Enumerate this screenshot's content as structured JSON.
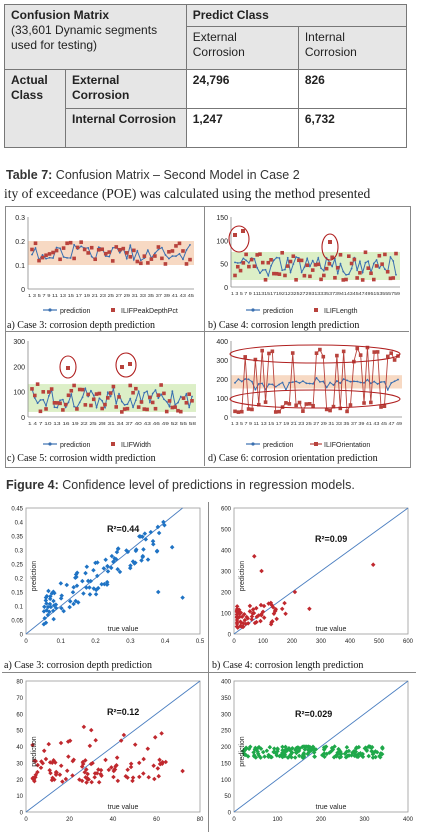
{
  "table": {
    "corner_title": "Confusion Matrix",
    "corner_note": "(33,601 Dynamic segments used for testing)",
    "predict_class": "Predict Class",
    "col_external": "External Corrosion",
    "col_internal": "Internal Corrosion",
    "actual_class": "Actual Class",
    "row_external": "External Corrosion",
    "row_internal": "Internal Corrosion",
    "v_ee": "24,796",
    "v_ei": "826",
    "v_ie": "1,247",
    "v_ii": "6,732"
  },
  "captions": {
    "table7_label": "Table 7:",
    "table7_text": " Confusion Matrix – Second Model in Case 2",
    "body_line": "ity of exceedance (POE) was calculated using the method presented",
    "fig4_label": "Figure 4:",
    "fig4_text": " Confidence level of predictions in regression models."
  },
  "top_panels": {
    "a": "a) Case 3: corrosion depth prediction",
    "b": "b) Case 4: corrosion length prediction",
    "c": "c) Case 5: corrosion width prediction",
    "d": "d) Case 6: corrosion orientation prediction"
  },
  "bottom_panels": {
    "a": "a) Case 3: corrosion depth prediction",
    "b": "b) Case 4: corrosion length prediction"
  },
  "colors": {
    "prediction_line": "#3a6fb0",
    "actual_marker": "#b8423c",
    "band_orange": "#f6d2b8",
    "band_green": "#d6ecbd",
    "scatter_blue": "#1f73c4",
    "scatter_red": "#c0282e",
    "scatter_green": "#1fa84a",
    "diagonal": "#4a7ec0",
    "circle": "#b02020"
  },
  "chart_data": [
    {
      "type": "line",
      "panel": "top-a",
      "series": [
        {
          "name": "prediction"
        },
        {
          "name": "ILIFPeakDepthPct"
        }
      ],
      "ylim": [
        0,
        0.3
      ],
      "yticks": [
        "0",
        "0.1",
        "0.2",
        "0.3"
      ],
      "xticks": "1 3 5 7 9 11 13 15 17 19 21 23 25 27 29 31 33 35 37 39 41 43 45",
      "n_points": 46
    },
    {
      "type": "line",
      "panel": "top-b",
      "series": [
        {
          "name": "prediction"
        },
        {
          "name": "ILIFLength"
        }
      ],
      "ylim": [
        0,
        150
      ],
      "yticks": [
        "0",
        "50",
        "100",
        "150"
      ],
      "xticks": "1 3 5 7 9 11131517192123252729313335373941434547495153555759",
      "n_points": 59
    },
    {
      "type": "line",
      "panel": "top-c",
      "series": [
        {
          "name": "prediction"
        },
        {
          "name": "ILIFWidth"
        }
      ],
      "ylim": [
        0,
        300
      ],
      "yticks": [
        "0",
        "100",
        "200",
        "300"
      ],
      "xticks": "1 4 7 10 13 16 19 22 25 28 31 34 37 40 43 46 49 52 55 58",
      "n_points": 58
    },
    {
      "type": "line",
      "panel": "top-d",
      "series": [
        {
          "name": "prediction"
        },
        {
          "name": "ILIFOrientation"
        }
      ],
      "ylim": [
        0,
        400
      ],
      "yticks": [
        "0",
        "100",
        "200",
        "300",
        "400"
      ],
      "xticks": "1 3 5 7 9 11 13 15 17 19 21 23 25 27 29 31 33 35 37 39 41 43 45 47 49",
      "n_points": 49
    },
    {
      "type": "scatter",
      "panel": "bottom-a",
      "annotation": "R²=0.44",
      "xlabel": "true value",
      "ylabel": "prediction",
      "xlim": [
        0,
        0.5
      ],
      "ylim": [
        0,
        0.45
      ],
      "xticks": [
        "0",
        "0.1",
        "0.2",
        "0.3",
        "0.4",
        "0.5"
      ],
      "yticks": [
        "0",
        "0.05",
        "0.1",
        "0.15",
        "0.2",
        "0.25",
        "0.3",
        "0.35",
        "0.4",
        "0.45"
      ]
    },
    {
      "type": "scatter",
      "panel": "bottom-b",
      "annotation": "R²=0.09",
      "xlabel": "true value",
      "ylabel": "prediction",
      "xlim": [
        0,
        600
      ],
      "ylim": [
        0,
        600
      ],
      "xticks": [
        "0",
        "100",
        "200",
        "300",
        "400",
        "500",
        "600"
      ],
      "yticks": [
        "0",
        "100",
        "200",
        "300",
        "400",
        "500",
        "600"
      ]
    },
    {
      "type": "scatter",
      "panel": "bottom-c",
      "annotation": "R²=0.12",
      "xlabel": "true value",
      "ylabel": "prediction",
      "xlim": [
        0,
        80
      ],
      "ylim": [
        0,
        80
      ],
      "xticks": [
        "0",
        "20",
        "40",
        "60",
        "80"
      ],
      "yticks": [
        "0",
        "10",
        "20",
        "30",
        "40",
        "50",
        "60",
        "70",
        "80"
      ]
    },
    {
      "type": "scatter",
      "panel": "bottom-d",
      "annotation": "R²=0.029",
      "xlabel": "true value",
      "ylabel": "prediction",
      "xlim": [
        0,
        400
      ],
      "ylim": [
        0,
        400
      ],
      "xticks": [
        "0",
        "100",
        "200",
        "300",
        "400"
      ],
      "yticks": [
        "0",
        "50",
        "100",
        "150",
        "200",
        "250",
        "300",
        "350",
        "400"
      ]
    }
  ]
}
